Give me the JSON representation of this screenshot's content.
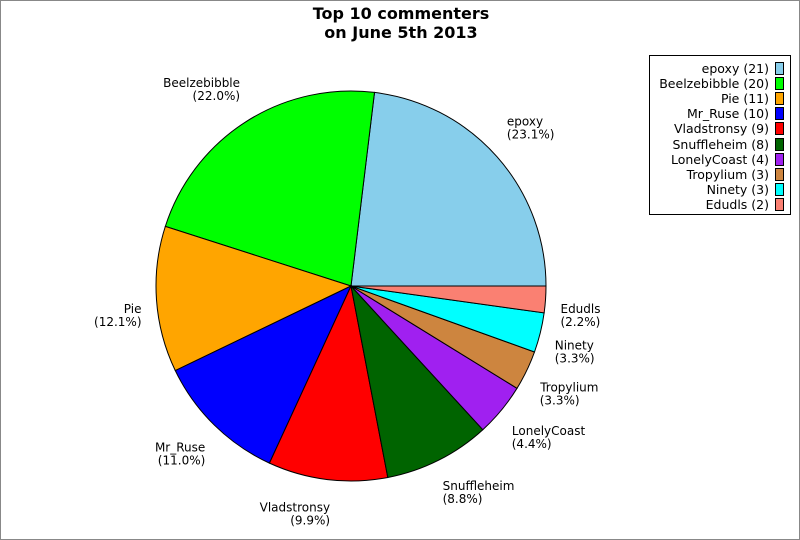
{
  "chart_data": {
    "type": "pie",
    "title": "Top 10 commenters\non June 5th 2013",
    "title_lines": [
      "Top 10 commenters",
      "on June 5th 2013"
    ],
    "legend_position": "top-right",
    "slices": [
      {
        "label": "epoxy",
        "value": 21,
        "percent": "(23.1%)",
        "legend": "epoxy (21)",
        "color": "#87CEEB"
      },
      {
        "label": "Beelzebibble",
        "value": 20,
        "percent": "(22.0%)",
        "legend": "Beelzebibble (20)",
        "color": "#00FF00"
      },
      {
        "label": "Pie",
        "value": 11,
        "percent": "(12.1%)",
        "legend": "Pie (11)",
        "color": "#FFA500"
      },
      {
        "label": "Mr_Ruse",
        "value": 10,
        "percent": "(11.0%)",
        "legend": "Mr_Ruse (10)",
        "color": "#0000FF"
      },
      {
        "label": "Vladstronsy",
        "value": 9,
        "percent": "(9.9%)",
        "legend": "Vladstronsy (9)",
        "color": "#FF0000"
      },
      {
        "label": "Snuffleheim",
        "value": 8,
        "percent": "(8.8%)",
        "legend": "Snuffleheim (8)",
        "color": "#006400"
      },
      {
        "label": "LonelyCoast",
        "value": 4,
        "percent": "(4.4%)",
        "legend": "LonelyCoast (4)",
        "color": "#A020F0"
      },
      {
        "label": "Tropylium",
        "value": 3,
        "percent": "(3.3%)",
        "legend": "Tropylium (3)",
        "color": "#CD853F"
      },
      {
        "label": "Ninety",
        "value": 3,
        "percent": "(3.3%)",
        "legend": "Ninety (3)",
        "color": "#00FFFF"
      },
      {
        "label": "Edudls",
        "value": 2,
        "percent": "(2.2%)",
        "legend": "Edudls (2)",
        "color": "#FA8072"
      }
    ]
  }
}
